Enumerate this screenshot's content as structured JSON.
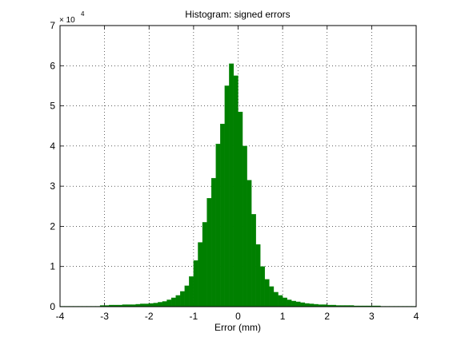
{
  "chart_data": {
    "type": "histogram",
    "title": "Histogram: signed errors",
    "xlabel": "Error (mm)",
    "y_multiplier": "× 10",
    "y_exponent": "4",
    "color": "#008000",
    "grid": true,
    "bins": [
      -4.0,
      -3.9,
      -3.8,
      -3.7,
      -3.6,
      -3.5,
      -3.4,
      -3.3,
      -3.2,
      -3.1,
      -3.0,
      -2.9,
      -2.8,
      -2.7,
      -2.6,
      -2.5,
      -2.4,
      -2.3,
      -2.2,
      -2.1,
      -2.0,
      -1.9,
      -1.8,
      -1.7,
      -1.6,
      -1.5,
      -1.4,
      -1.3,
      -1.2,
      -1.1,
      -1.0,
      -0.9,
      -0.8,
      -0.7,
      -0.6,
      -0.5,
      -0.4,
      -0.3,
      -0.2,
      -0.1,
      0.0,
      0.1,
      0.2,
      0.3,
      0.4,
      0.5,
      0.6,
      0.7,
      0.8,
      0.9,
      1.0,
      1.1,
      1.2,
      1.3,
      1.4,
      1.5,
      1.6,
      1.7,
      1.8,
      1.9,
      2.0,
      2.1,
      2.2,
      2.3,
      2.4,
      2.5,
      2.6,
      2.7,
      2.8,
      2.9,
      3.0,
      3.1,
      3.2,
      3.3,
      3.4,
      3.5,
      3.6,
      3.7,
      3.8,
      3.9,
      4.0
    ],
    "counts": [
      0.01,
      0.01,
      0.01,
      0.01,
      0.01,
      0.01,
      0.01,
      0.01,
      0.01,
      0.03,
      0.03,
      0.04,
      0.04,
      0.04,
      0.05,
      0.05,
      0.05,
      0.06,
      0.07,
      0.07,
      0.08,
      0.09,
      0.11,
      0.13,
      0.17,
      0.22,
      0.28,
      0.38,
      0.52,
      0.75,
      1.15,
      1.6,
      2.1,
      2.7,
      3.2,
      4.05,
      4.55,
      5.5,
      6.05,
      5.75,
      4.85,
      4.0,
      3.15,
      2.3,
      1.55,
      1.0,
      0.68,
      0.5,
      0.36,
      0.28,
      0.22,
      0.17,
      0.14,
      0.12,
      0.1,
      0.08,
      0.07,
      0.06,
      0.05,
      0.05,
      0.04,
      0.04,
      0.03,
      0.03,
      0.03,
      0.03,
      0.02,
      0.02,
      0.02,
      0.02,
      0.02,
      0.02,
      0.01,
      0.01,
      0.01,
      0.01,
      0.01,
      0.01,
      0.01,
      0.01
    ],
    "xlim": [
      -4,
      4
    ],
    "xticks": [
      -4,
      -3,
      -2,
      -1,
      0,
      1,
      2,
      3,
      4
    ],
    "ylim": [
      0,
      7
    ],
    "yticks": [
      0,
      1,
      2,
      3,
      4,
      5,
      6,
      7
    ]
  }
}
